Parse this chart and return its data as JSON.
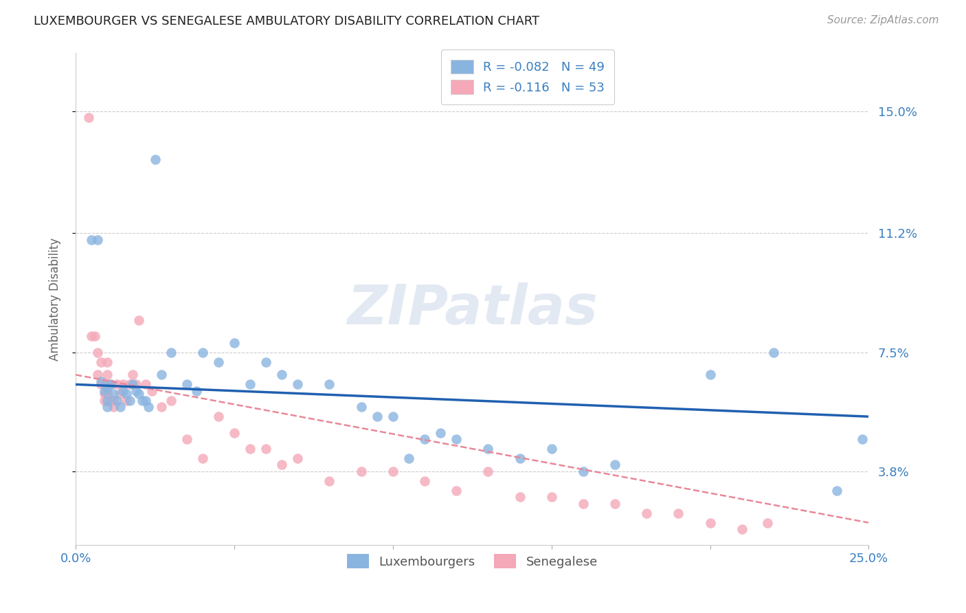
{
  "title": "LUXEMBOURGER VS SENEGALESE AMBULATORY DISABILITY CORRELATION CHART",
  "source": "Source: ZipAtlas.com",
  "ylabel": "Ambulatory Disability",
  "xlim": [
    0.0,
    0.25
  ],
  "ylim": [
    0.015,
    0.168
  ],
  "xtick_positions": [
    0.0,
    0.05,
    0.1,
    0.15,
    0.2,
    0.25
  ],
  "xticklabels": [
    "0.0%",
    "",
    "",
    "",
    "",
    "25.0%"
  ],
  "ytick_positions": [
    0.038,
    0.075,
    0.112,
    0.15
  ],
  "ytick_labels": [
    "3.8%",
    "7.5%",
    "11.2%",
    "15.0%"
  ],
  "blue_R": "-0.082",
  "blue_N": "49",
  "pink_R": "-0.116",
  "pink_N": "53",
  "blue_color": "#8ab4e0",
  "pink_color": "#f4a8b8",
  "blue_line_color": "#2060b0",
  "pink_line_color": "#e88898",
  "legend_labels": [
    "Luxembourgers",
    "Senegalese"
  ],
  "watermark": "ZIPatlas",
  "blue_line_x0": 0.0,
  "blue_line_y0": 0.065,
  "blue_line_x1": 0.25,
  "blue_line_y1": 0.055,
  "pink_line_x0": 0.0,
  "pink_line_y0": 0.068,
  "pink_line_x1": 0.25,
  "pink_line_y1": 0.022,
  "blue_scatter_x": [
    0.005,
    0.007,
    0.008,
    0.009,
    0.01,
    0.01,
    0.01,
    0.011,
    0.012,
    0.013,
    0.014,
    0.015,
    0.016,
    0.017,
    0.018,
    0.019,
    0.02,
    0.021,
    0.022,
    0.023,
    0.025,
    0.027,
    0.03,
    0.035,
    0.038,
    0.04,
    0.045,
    0.05,
    0.055,
    0.06,
    0.065,
    0.07,
    0.08,
    0.09,
    0.095,
    0.1,
    0.105,
    0.11,
    0.115,
    0.12,
    0.13,
    0.14,
    0.15,
    0.16,
    0.17,
    0.2,
    0.22,
    0.24,
    0.248
  ],
  "blue_scatter_y": [
    0.11,
    0.11,
    0.066,
    0.063,
    0.064,
    0.06,
    0.058,
    0.065,
    0.062,
    0.06,
    0.058,
    0.063,
    0.062,
    0.06,
    0.065,
    0.063,
    0.062,
    0.06,
    0.06,
    0.058,
    0.135,
    0.068,
    0.075,
    0.065,
    0.063,
    0.075,
    0.072,
    0.078,
    0.065,
    0.072,
    0.068,
    0.065,
    0.065,
    0.058,
    0.055,
    0.055,
    0.042,
    0.048,
    0.05,
    0.048,
    0.045,
    0.042,
    0.045,
    0.038,
    0.04,
    0.068,
    0.075,
    0.032,
    0.048
  ],
  "pink_scatter_x": [
    0.004,
    0.005,
    0.006,
    0.007,
    0.007,
    0.008,
    0.008,
    0.009,
    0.009,
    0.009,
    0.01,
    0.01,
    0.01,
    0.01,
    0.011,
    0.011,
    0.012,
    0.012,
    0.013,
    0.014,
    0.015,
    0.016,
    0.017,
    0.018,
    0.019,
    0.02,
    0.022,
    0.024,
    0.027,
    0.03,
    0.035,
    0.04,
    0.045,
    0.05,
    0.055,
    0.06,
    0.065,
    0.07,
    0.08,
    0.09,
    0.1,
    0.11,
    0.12,
    0.13,
    0.14,
    0.15,
    0.16,
    0.17,
    0.18,
    0.19,
    0.2,
    0.21,
    0.218
  ],
  "pink_scatter_y": [
    0.148,
    0.08,
    0.08,
    0.075,
    0.068,
    0.072,
    0.065,
    0.065,
    0.062,
    0.06,
    0.072,
    0.068,
    0.065,
    0.062,
    0.065,
    0.06,
    0.06,
    0.058,
    0.065,
    0.062,
    0.065,
    0.06,
    0.065,
    0.068,
    0.065,
    0.085,
    0.065,
    0.063,
    0.058,
    0.06,
    0.048,
    0.042,
    0.055,
    0.05,
    0.045,
    0.045,
    0.04,
    0.042,
    0.035,
    0.038,
    0.038,
    0.035,
    0.032,
    0.038,
    0.03,
    0.03,
    0.028,
    0.028,
    0.025,
    0.025,
    0.022,
    0.02,
    0.022
  ]
}
